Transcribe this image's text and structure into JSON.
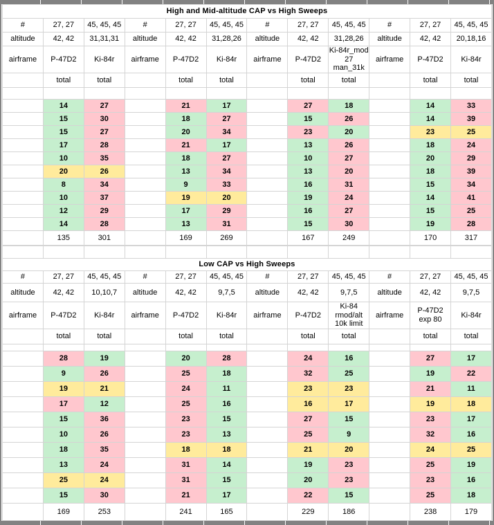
{
  "labels": {
    "num": "#",
    "altitude": "altitude",
    "airframe": "airframe",
    "total": "total"
  },
  "colors": {
    "win_bg": "#C6EFCE",
    "win_text": "#006100",
    "loss_bg": "#FFC7CE",
    "loss_text": "#9C0006",
    "draw_bg": "#FFEB9C",
    "draw_text": "#9C6500",
    "gridline": "#d4d4d4",
    "frame": "#828282"
  },
  "tables": [
    {
      "title": "High and Mid-altitude CAP vs High Sweeps",
      "groups": [
        {
          "columns": [
            {
              "header": {
                "num": "27, 27",
                "altitude": "42, 42",
                "airframe": "P-47D2"
              },
              "values": [
                14,
                15,
                15,
                17,
                10,
                20,
                8,
                10,
                12,
                14
              ],
              "colors": [
                "green",
                "green",
                "green",
                "green",
                "green",
                "yellow",
                "green",
                "green",
                "green",
                "green"
              ],
              "total": 135
            },
            {
              "header": {
                "num": "45, 45, 45",
                "altitude": "31,31,31",
                "airframe": "Ki-84r"
              },
              "values": [
                27,
                30,
                27,
                28,
                35,
                26,
                34,
                37,
                29,
                28
              ],
              "colors": [
                "red",
                "red",
                "red",
                "red",
                "red",
                "yellow",
                "red",
                "red",
                "red",
                "red"
              ],
              "total": 301
            }
          ]
        },
        {
          "columns": [
            {
              "header": {
                "num": "27, 27",
                "altitude": "42, 42",
                "airframe": "P-47D2"
              },
              "values": [
                21,
                18,
                20,
                21,
                18,
                13,
                9,
                19,
                17,
                13
              ],
              "colors": [
                "red",
                "green",
                "green",
                "red",
                "green",
                "green",
                "green",
                "yellow",
                "green",
                "green"
              ],
              "total": 169
            },
            {
              "header": {
                "num": "45, 45, 45",
                "altitude": "31,28,26",
                "airframe": "Ki-84r"
              },
              "values": [
                17,
                27,
                34,
                17,
                27,
                34,
                33,
                20,
                29,
                31
              ],
              "colors": [
                "green",
                "red",
                "red",
                "green",
                "red",
                "red",
                "red",
                "yellow",
                "red",
                "red"
              ],
              "total": 269
            }
          ]
        },
        {
          "columns": [
            {
              "header": {
                "num": "27, 27",
                "altitude": "42, 42",
                "airframe": "P-47D2"
              },
              "values": [
                27,
                15,
                23,
                13,
                10,
                13,
                16,
                19,
                16,
                15
              ],
              "colors": [
                "red",
                "green",
                "red",
                "green",
                "green",
                "green",
                "green",
                "green",
                "green",
                "green"
              ],
              "total": 167
            },
            {
              "header": {
                "num": "45, 45, 45",
                "altitude": "31,28,26",
                "airframe": "Ki-84r_mod 27 man_31k"
              },
              "values": [
                18,
                26,
                20,
                26,
                27,
                20,
                31,
                24,
                27,
                30
              ],
              "colors": [
                "green",
                "red",
                "green",
                "red",
                "red",
                "red",
                "red",
                "red",
                "red",
                "red"
              ],
              "total": 249
            }
          ]
        },
        {
          "columns": [
            {
              "header": {
                "num": "27, 27",
                "altitude": "42, 42",
                "airframe": "P-47D2"
              },
              "values": [
                14,
                14,
                23,
                18,
                20,
                18,
                15,
                14,
                15,
                19
              ],
              "colors": [
                "green",
                "green",
                "yellow",
                "green",
                "green",
                "green",
                "green",
                "green",
                "green",
                "green"
              ],
              "total": 170
            },
            {
              "header": {
                "num": "45, 45, 45",
                "altitude": "20,18,16",
                "airframe": "Ki-84r"
              },
              "values": [
                33,
                39,
                25,
                24,
                29,
                39,
                34,
                41,
                25,
                28
              ],
              "colors": [
                "red",
                "red",
                "yellow",
                "red",
                "red",
                "red",
                "red",
                "red",
                "red",
                "red"
              ],
              "total": 317
            }
          ]
        }
      ]
    },
    {
      "title": "Low CAP vs High Sweeps",
      "groups": [
        {
          "columns": [
            {
              "header": {
                "num": "27, 27",
                "altitude": "42, 42",
                "airframe": "P-47D2"
              },
              "values": [
                28,
                9,
                19,
                17,
                15,
                10,
                18,
                13,
                25,
                15
              ],
              "colors": [
                "red",
                "green",
                "yellow",
                "red",
                "green",
                "green",
                "green",
                "green",
                "yellow",
                "green"
              ],
              "total": 169
            },
            {
              "header": {
                "num": "45, 45, 45",
                "altitude": "10,10,7",
                "airframe": "Ki-84r"
              },
              "values": [
                19,
                26,
                21,
                12,
                36,
                26,
                35,
                24,
                24,
                30
              ],
              "colors": [
                "green",
                "red",
                "yellow",
                "green",
                "red",
                "red",
                "red",
                "red",
                "yellow",
                "red"
              ],
              "total": 253
            }
          ]
        },
        {
          "columns": [
            {
              "header": {
                "num": "27, 27",
                "altitude": "42, 42",
                "airframe": "P-47D2"
              },
              "values": [
                20,
                25,
                24,
                25,
                23,
                23,
                18,
                31,
                31,
                21
              ],
              "colors": [
                "green",
                "red",
                "red",
                "red",
                "red",
                "red",
                "yellow",
                "red",
                "red",
                "red"
              ],
              "total": 241
            },
            {
              "header": {
                "num": "45, 45, 45",
                "altitude": "9,7,5",
                "airframe": "Ki-84r"
              },
              "values": [
                28,
                18,
                11,
                16,
                15,
                13,
                18,
                14,
                15,
                17
              ],
              "colors": [
                "red",
                "green",
                "green",
                "green",
                "green",
                "green",
                "yellow",
                "green",
                "green",
                "green"
              ],
              "total": 165
            }
          ]
        },
        {
          "columns": [
            {
              "header": {
                "num": "27, 27",
                "altitude": "42, 42",
                "airframe": "P-47D2"
              },
              "values": [
                24,
                32,
                23,
                16,
                27,
                25,
                21,
                19,
                20,
                22
              ],
              "colors": [
                "red",
                "red",
                "yellow",
                "yellow",
                "red",
                "red",
                "yellow",
                "green",
                "green",
                "red"
              ],
              "total": 229
            },
            {
              "header": {
                "num": "45, 45, 45",
                "altitude": "9,7,5",
                "airframe": "Ki-84 rmod/alt 10k limit"
              },
              "values": [
                16,
                25,
                23,
                17,
                15,
                9,
                20,
                23,
                23,
                15
              ],
              "colors": [
                "green",
                "green",
                "yellow",
                "yellow",
                "green",
                "green",
                "yellow",
                "red",
                "red",
                "green"
              ],
              "total": 186
            }
          ]
        },
        {
          "columns": [
            {
              "header": {
                "num": "27, 27",
                "altitude": "42, 42",
                "airframe": "P-47D2 exp 80"
              },
              "values": [
                27,
                19,
                21,
                19,
                23,
                32,
                24,
                25,
                23,
                25
              ],
              "colors": [
                "red",
                "green",
                "red",
                "yellow",
                "red",
                "red",
                "yellow",
                "red",
                "red",
                "red"
              ],
              "total": 238
            },
            {
              "header": {
                "num": "45, 45, 45",
                "altitude": "9,7,5",
                "airframe": "Ki-84r"
              },
              "values": [
                17,
                22,
                11,
                18,
                17,
                16,
                25,
                19,
                16,
                18
              ],
              "colors": [
                "green",
                "red",
                "green",
                "yellow",
                "green",
                "green",
                "yellow",
                "green",
                "green",
                "green"
              ],
              "total": 179
            }
          ]
        }
      ]
    }
  ]
}
